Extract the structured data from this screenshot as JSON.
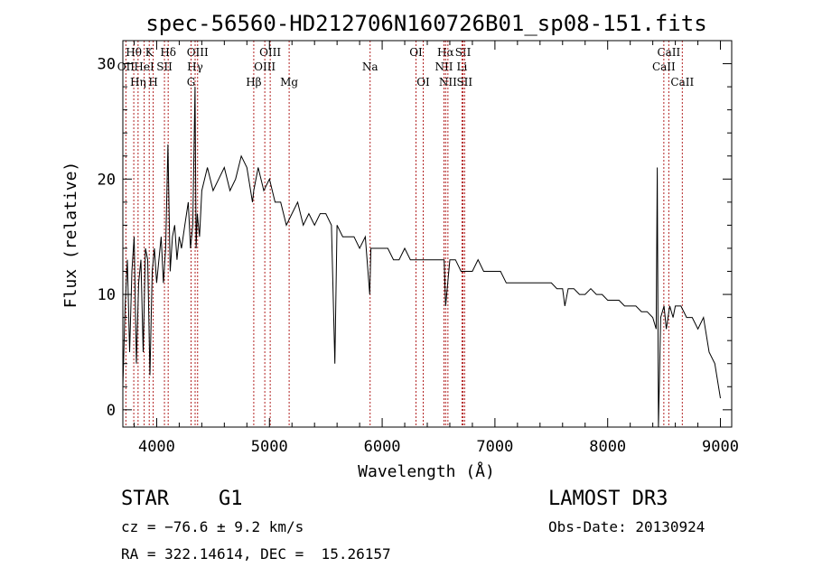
{
  "chart_data": {
    "type": "line",
    "title": "spec-56560-HD212706N160726B01_sp08-151.fits",
    "xlabel": "Wavelength (Å)",
    "ylabel": "Flux (relative)",
    "xlim": [
      3700,
      9100
    ],
    "ylim": [
      -1.5,
      32
    ],
    "x_ticks": [
      4000,
      5000,
      6000,
      7000,
      8000,
      9000
    ],
    "x_tick_labels": [
      "4000",
      "5000",
      "6000",
      "7000",
      "8000",
      "9000"
    ],
    "y_ticks": [
      0,
      10,
      20,
      30
    ],
    "y_tick_labels": [
      "0",
      "10",
      "20",
      "30"
    ],
    "grid": false,
    "series": [
      {
        "name": "flux",
        "x": [
          3700,
          3720,
          3740,
          3760,
          3780,
          3800,
          3820,
          3840,
          3860,
          3880,
          3900,
          3920,
          3940,
          3960,
          3980,
          4000,
          4020,
          4040,
          4060,
          4080,
          4100,
          4120,
          4140,
          4160,
          4180,
          4200,
          4220,
          4250,
          4280,
          4300,
          4320,
          4340,
          4350,
          4360,
          4380,
          4400,
          4450,
          4500,
          4550,
          4600,
          4650,
          4700,
          4750,
          4800,
          4850,
          4861,
          4900,
          4950,
          5000,
          5050,
          5100,
          5150,
          5200,
          5250,
          5300,
          5350,
          5400,
          5450,
          5500,
          5550,
          5580,
          5600,
          5650,
          5700,
          5750,
          5800,
          5850,
          5890,
          5900,
          5950,
          6000,
          6050,
          6100,
          6150,
          6200,
          6250,
          6300,
          6350,
          6400,
          6450,
          6500,
          6550,
          6563,
          6600,
          6650,
          6700,
          6750,
          6800,
          6850,
          6900,
          6950,
          7000,
          7050,
          7100,
          7150,
          7200,
          7250,
          7300,
          7350,
          7400,
          7450,
          7500,
          7550,
          7600,
          7620,
          7650,
          7700,
          7750,
          7800,
          7850,
          7900,
          7950,
          8000,
          8050,
          8100,
          8150,
          8200,
          8250,
          8300,
          8350,
          8400,
          8430,
          8440,
          8450,
          8470,
          8500,
          8520,
          8550,
          8580,
          8600,
          8650,
          8700,
          8750,
          8800,
          8850,
          8900,
          8950,
          9000
        ],
        "values": [
          2,
          9,
          13,
          5,
          12,
          15,
          4,
          11,
          13,
          5,
          14,
          13,
          3,
          12,
          14,
          11,
          13,
          15,
          11,
          14,
          23,
          12,
          15,
          16,
          13,
          15,
          14,
          16,
          18,
          14,
          16,
          28,
          14,
          17,
          15,
          19,
          21,
          19,
          20,
          21,
          19,
          20,
          22,
          21,
          18,
          19,
          21,
          19,
          20,
          18,
          18,
          16,
          17,
          18,
          16,
          17,
          16,
          17,
          17,
          16,
          4,
          16,
          15,
          15,
          15,
          14,
          15,
          10,
          14,
          14,
          14,
          14,
          13,
          13,
          14,
          13,
          13,
          13,
          13,
          13,
          13,
          13,
          9,
          13,
          13,
          12,
          12,
          12,
          13,
          12,
          12,
          12,
          12,
          11,
          11,
          11,
          11,
          11,
          11,
          11,
          11,
          11,
          10.5,
          10.5,
          9,
          10.5,
          10.5,
          10,
          10,
          10.5,
          10,
          10,
          9.5,
          9.5,
          9.5,
          9,
          9,
          9,
          8.5,
          8.5,
          8,
          7,
          21,
          -2,
          8,
          9,
          7,
          9,
          8,
          9,
          9,
          8,
          8,
          7,
          8,
          5,
          4,
          1
        ]
      }
    ],
    "line_markers": [
      {
        "label": "Hθ",
        "x": 3797,
        "row": 1
      },
      {
        "label": "K",
        "x": 3934,
        "row": 1
      },
      {
        "label": "Hδ",
        "x": 4102,
        "row": 1
      },
      {
        "label": "OII",
        "x": 3727,
        "row": 2
      },
      {
        "label": "HeI",
        "x": 3889,
        "row": 2
      },
      {
        "label": "SII",
        "x": 4069,
        "row": 2
      },
      {
        "label": "Hη",
        "x": 3835,
        "row": 3
      },
      {
        "label": "H",
        "x": 3969,
        "row": 3
      },
      {
        "label": "OIII",
        "x": 4363,
        "row": 1
      },
      {
        "label": "Hγ",
        "x": 4341,
        "row": 2
      },
      {
        "label": "G",
        "x": 4305,
        "row": 3
      },
      {
        "label": "Hβ",
        "x": 4861,
        "row": 3
      },
      {
        "label": "OIII",
        "x": 5007,
        "row": 1
      },
      {
        "label": "OIII",
        "x": 4959,
        "row": 2
      },
      {
        "label": "Mg",
        "x": 5175,
        "row": 3
      },
      {
        "label": "Na",
        "x": 5893,
        "row": 2
      },
      {
        "label": "OI",
        "x": 6300,
        "row": 1
      },
      {
        "label": "OI",
        "x": 6364,
        "row": 3
      },
      {
        "label": "Hα",
        "x": 6563,
        "row": 1
      },
      {
        "label": "NII",
        "x": 6548,
        "row": 2
      },
      {
        "label": "NII",
        "x": 6583,
        "row": 3
      },
      {
        "label": "SII",
        "x": 6717,
        "row": 1
      },
      {
        "label": "Li",
        "x": 6708,
        "row": 2
      },
      {
        "label": "SII",
        "x": 6731,
        "row": 3
      },
      {
        "label": "CaII",
        "x": 8542,
        "row": 1
      },
      {
        "label": "CaII",
        "x": 8498,
        "row": 2
      },
      {
        "label": "CaII",
        "x": 8662,
        "row": 3
      }
    ]
  },
  "info": {
    "object_class": "STAR",
    "subclass": "G1",
    "redshift": "cz = −76.6 ± 9.2 km/s",
    "coords": "RA = 322.14614, DEC =  15.26157",
    "survey": "LAMOST DR3",
    "obs_date": "Obs-Date: 20130924"
  }
}
